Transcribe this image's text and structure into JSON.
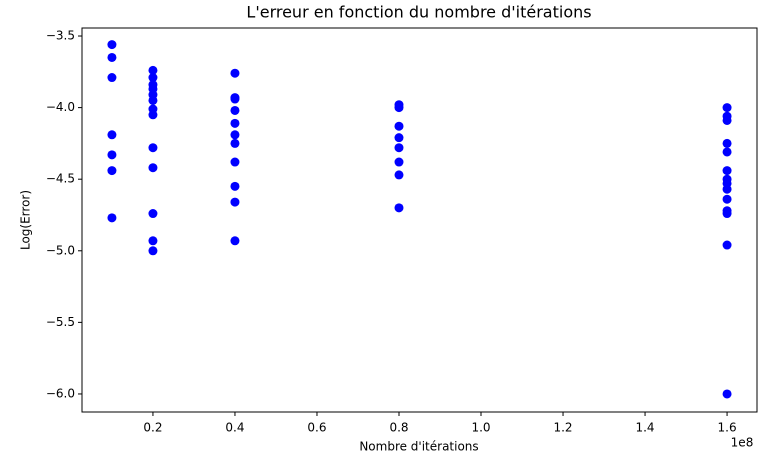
{
  "chart_data": {
    "type": "scatter",
    "title": "L'erreur en fonction du nombre d'itérations",
    "x_label": "Nombre d'itérations",
    "y_label": "Log(Error)",
    "x_offset_label": "1e8",
    "color": "#0000ff",
    "x": [
      0.1,
      0.1,
      0.1,
      0.1,
      0.1,
      0.1,
      0.1,
      0.2,
      0.2,
      0.2,
      0.2,
      0.2,
      0.2,
      0.2,
      0.2,
      0.2,
      0.2,
      0.2,
      0.2,
      0.2,
      0.4,
      0.4,
      0.4,
      0.4,
      0.4,
      0.4,
      0.4,
      0.4,
      0.4,
      0.4,
      0.4,
      0.8,
      0.8,
      0.8,
      0.8,
      0.8,
      0.8,
      0.8,
      0.8,
      1.6,
      1.6,
      1.6,
      1.6,
      1.6,
      1.6,
      1.6,
      1.6,
      1.6,
      1.6,
      1.6,
      1.6,
      1.6,
      1.6
    ],
    "y": [
      -3.56,
      -3.65,
      -3.79,
      -4.19,
      -4.33,
      -4.44,
      -4.77,
      -3.74,
      -3.79,
      -3.84,
      -3.87,
      -3.91,
      -3.95,
      -4.01,
      -4.05,
      -4.28,
      -4.42,
      -4.74,
      -4.93,
      -5.0,
      -3.76,
      -3.93,
      -3.94,
      -4.02,
      -4.11,
      -4.19,
      -4.25,
      -4.38,
      -4.55,
      -4.66,
      -4.93,
      -3.98,
      -4.0,
      -4.13,
      -4.21,
      -4.28,
      -4.38,
      -4.47,
      -4.7,
      -4.0,
      -4.06,
      -4.09,
      -4.25,
      -4.31,
      -4.44,
      -4.5,
      -4.53,
      -4.57,
      -4.64,
      -4.72,
      -4.74,
      -4.96,
      -6.0
    ],
    "xlim": [
      0.027,
      1.673
    ],
    "ylim": [
      -6.126,
      -3.444
    ],
    "xticks": [
      0.2,
      0.4,
      0.6,
      0.8,
      {
        "value": 1,
        "label": "1.0"
      },
      1.2,
      1.4,
      1.6
    ],
    "yticks": [
      {
        "value": -3.5,
        "label": "−3.5"
      },
      {
        "value": -4,
        "label": "−4.0"
      },
      {
        "value": -4.5,
        "label": "−4.5"
      },
      {
        "value": -5,
        "label": "−5.0"
      },
      {
        "value": -5.5,
        "label": "−5.5"
      },
      {
        "value": -6,
        "label": "−6.0"
      }
    ],
    "grid": false
  }
}
